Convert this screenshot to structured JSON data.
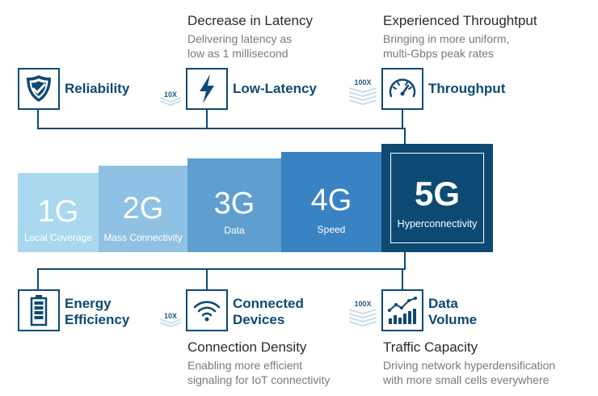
{
  "top": {
    "latency": {
      "heading": "Decrease in Latency",
      "line1": "Delivering latency as",
      "line2": "low as 1 millisecond"
    },
    "throughput": {
      "heading": "Experienced Throughtput",
      "line1": "Bringing in more uniform,",
      "line2": "multi-Gbps peak rates"
    }
  },
  "top_items": [
    {
      "label": "Reliability",
      "icon": "shield-icon"
    },
    {
      "label": "Low-Latency",
      "icon": "lightning-icon",
      "multiplier": "10X"
    },
    {
      "label": "Throughput",
      "icon": "speedometer-icon",
      "multiplier": "100X"
    }
  ],
  "generations": [
    {
      "name": "1G",
      "desc": "Local Coverage",
      "color": "#a9d8ef"
    },
    {
      "name": "2G",
      "desc": "Mass Connectivity",
      "color": "#8ec1e3"
    },
    {
      "name": "3G",
      "desc": "Data",
      "color": "#5f9fd0"
    },
    {
      "name": "4G",
      "desc": "Speed",
      "color": "#3a83c2"
    },
    {
      "name": "5G",
      "desc": "Hyperconnectivity",
      "color": "#0d4a73"
    }
  ],
  "bottom_items": [
    {
      "label1": "Energy",
      "label2": "Efficiency",
      "icon": "battery-icon"
    },
    {
      "label1": "Connected",
      "label2": "Devices",
      "icon": "wifi-icon",
      "multiplier": "10X"
    },
    {
      "label1": "Data",
      "label2": "Volume",
      "icon": "bar-chart-icon",
      "multiplier": "100X"
    }
  ],
  "bottom": {
    "density": {
      "heading": "Connection Density",
      "line1": "Enabling more efficient",
      "line2": "signaling for IoT connectivity"
    },
    "capacity": {
      "heading": "Traffic Capacity",
      "line1": "Driving network hyperdensification",
      "line2": "with more small cells everywhere"
    }
  }
}
